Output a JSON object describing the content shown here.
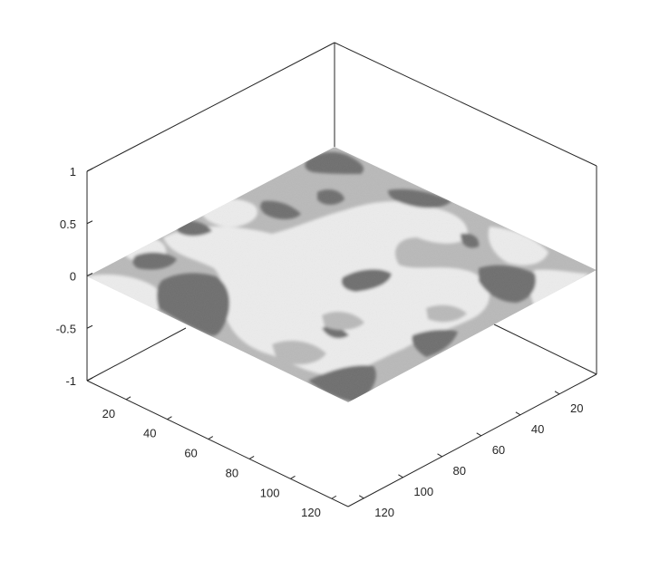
{
  "chart_data": {
    "type": "heatmap",
    "view": "3-D isometric surface rendered as a flat textured plane at z = 0",
    "colormap": "grayscale",
    "gray_levels": [
      "#6e6e6e",
      "#b9b9b9",
      "#ececec"
    ],
    "z_axis": {
      "ylim": [
        -1,
        1
      ],
      "tick_labels": [
        "1",
        "0.5",
        "0",
        "-0.5",
        "-1"
      ]
    },
    "x_axis": {
      "range": [
        1,
        128
      ],
      "tick_labels": [
        "20",
        "40",
        "60",
        "80",
        "100",
        "120"
      ]
    },
    "y_axis": {
      "range": [
        1,
        128
      ],
      "tick_labels": [
        "20",
        "40",
        "60",
        "80",
        "100",
        "120"
      ]
    },
    "grid": false,
    "box": true,
    "regions": [
      {
        "level": 1,
        "label": "mid gray (background)"
      },
      {
        "level": 2,
        "label": "light gray (large connected patches)"
      },
      {
        "level": 0,
        "label": "dark gray (small scattered patches)"
      }
    ]
  }
}
